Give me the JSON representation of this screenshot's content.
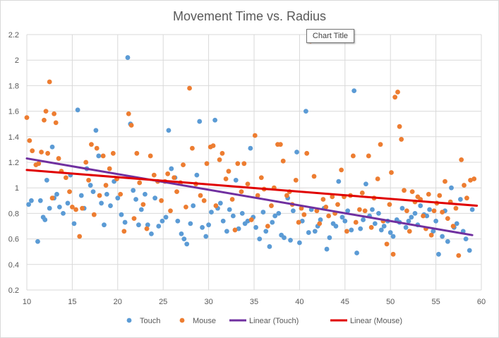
{
  "chart_data": {
    "type": "scatter",
    "title": "Movement Time vs. Radius",
    "xlabel": "",
    "ylabel": "",
    "xlim": [
      10,
      60
    ],
    "ylim": [
      0.2,
      2.2
    ],
    "x_ticks": [
      10,
      15,
      20,
      25,
      30,
      35,
      40,
      45,
      50,
      55,
      60
    ],
    "y_ticks": [
      0.2,
      0.4,
      0.6,
      0.8,
      1,
      1.2,
      1.4,
      1.6,
      1.8,
      2,
      2.2
    ],
    "x_tick_labels": [
      "10",
      "15",
      "20",
      "25",
      "30",
      "35",
      "40",
      "45",
      "50",
      "55",
      "60"
    ],
    "y_tick_labels": [
      "0.2",
      "0.4",
      "0.6",
      "0.8",
      "1",
      "1.2",
      "1.4",
      "1.6",
      "1.8",
      "2",
      "2.2"
    ],
    "grid": true,
    "legend_position": "bottom",
    "tooltip": "Chart Title",
    "series": [
      {
        "name": "Touch",
        "kind": "scatter",
        "color": "#5b9bd5",
        "points": [
          [
            10.2,
            0.87
          ],
          [
            10.5,
            0.9
          ],
          [
            11.2,
            0.58
          ],
          [
            11.5,
            0.9
          ],
          [
            11.8,
            0.77
          ],
          [
            12,
            0.75
          ],
          [
            12.2,
            1.06
          ],
          [
            12.5,
            0.84
          ],
          [
            12.8,
            1.32
          ],
          [
            13,
            0.92
          ],
          [
            13.3,
            0.95
          ],
          [
            13.6,
            0.85
          ],
          [
            14,
            0.8
          ],
          [
            14.5,
            0.88
          ],
          [
            14.8,
            1.1
          ],
          [
            15.2,
            0.72
          ],
          [
            15.6,
            1.61
          ],
          [
            16,
            0.94
          ],
          [
            16.3,
            0.84
          ],
          [
            16.6,
            1.15
          ],
          [
            17,
            1.02
          ],
          [
            17.3,
            0.97
          ],
          [
            17.6,
            1.45
          ],
          [
            17.9,
            1.25
          ],
          [
            18.2,
            0.88
          ],
          [
            18.5,
            0.71
          ],
          [
            18.8,
            0.95
          ],
          [
            19.2,
            0.86
          ],
          [
            19.6,
            1.05
          ],
          [
            20,
            0.92
          ],
          [
            20.4,
            0.79
          ],
          [
            20.8,
            0.73
          ],
          [
            21.1,
            2.02
          ],
          [
            21.4,
            1.5
          ],
          [
            21.7,
            0.98
          ],
          [
            22,
            0.91
          ],
          [
            22.3,
            0.71
          ],
          [
            22.6,
            0.83
          ],
          [
            23,
            0.95
          ],
          [
            23.3,
            0.71
          ],
          [
            23.7,
            0.64
          ],
          [
            24.1,
            0.92
          ],
          [
            24.5,
            0.7
          ],
          [
            24.9,
            0.74
          ],
          [
            25.3,
            0.77
          ],
          [
            25.6,
            1.45
          ],
          [
            25.9,
            1.15
          ],
          [
            26.3,
            1.08
          ],
          [
            26.6,
            0.74
          ],
          [
            27,
            0.64
          ],
          [
            27.3,
            0.6
          ],
          [
            27.6,
            0.56
          ],
          [
            28,
            0.72
          ],
          [
            28.3,
            0.86
          ],
          [
            28.7,
            1.1
          ],
          [
            29,
            1.52
          ],
          [
            29.3,
            0.69
          ],
          [
            29.7,
            0.62
          ],
          [
            30,
            0.71
          ],
          [
            30.3,
            0.81
          ],
          [
            30.7,
            1.53
          ],
          [
            31,
            0.84
          ],
          [
            31.3,
            0.88
          ],
          [
            31.6,
            0.74
          ],
          [
            32,
            0.66
          ],
          [
            32.3,
            0.83
          ],
          [
            32.7,
            0.78
          ],
          [
            33,
            1.06
          ],
          [
            33.3,
            0.68
          ],
          [
            33.7,
            0.8
          ],
          [
            34,
            0.72
          ],
          [
            34.3,
            0.74
          ],
          [
            34.6,
            1.31
          ],
          [
            34.9,
            0.77
          ],
          [
            35.2,
            0.69
          ],
          [
            35.6,
            0.6
          ],
          [
            36,
            0.81
          ],
          [
            36.3,
            0.66
          ],
          [
            36.7,
            0.54
          ],
          [
            37,
            0.73
          ],
          [
            37.3,
            0.78
          ],
          [
            37.7,
            0.8
          ],
          [
            38,
            0.63
          ],
          [
            38.3,
            0.61
          ],
          [
            38.7,
            0.92
          ],
          [
            39,
            0.59
          ],
          [
            39.3,
            0.82
          ],
          [
            39.7,
            1.28
          ],
          [
            40,
            0.57
          ],
          [
            40.3,
            0.74
          ],
          [
            40.7,
            1.6
          ],
          [
            41,
            0.65
          ],
          [
            41.3,
            0.83
          ],
          [
            41.7,
            0.66
          ],
          [
            42,
            0.7
          ],
          [
            42.3,
            0.75
          ],
          [
            42.7,
            0.84
          ],
          [
            43,
            0.52
          ],
          [
            43.3,
            0.61
          ],
          [
            43.7,
            0.72
          ],
          [
            44,
            0.7
          ],
          [
            44.3,
            1.05
          ],
          [
            44.7,
            0.77
          ],
          [
            45,
            0.74
          ],
          [
            45.3,
            0.82
          ],
          [
            45.7,
            0.67
          ],
          [
            46,
            1.76
          ],
          [
            46.3,
            0.49
          ],
          [
            46.7,
            0.68
          ],
          [
            47,
            0.75
          ],
          [
            47.3,
            1.03
          ],
          [
            47.7,
            0.78
          ],
          [
            48,
            0.83
          ],
          [
            48.3,
            0.72
          ],
          [
            48.7,
            0.8
          ],
          [
            49,
            0.67
          ],
          [
            49.3,
            0.7
          ],
          [
            49.7,
            0.74
          ],
          [
            50,
            0.65
          ],
          [
            50.3,
            0.62
          ],
          [
            50.7,
            0.75
          ],
          [
            51,
            0.73
          ],
          [
            51.3,
            0.84
          ],
          [
            51.7,
            0.69
          ],
          [
            52,
            0.74
          ],
          [
            52.3,
            0.77
          ],
          [
            52.7,
            0.8
          ],
          [
            53,
            0.71
          ],
          [
            53.3,
            0.86
          ],
          [
            53.7,
            0.79
          ],
          [
            54,
            0.78
          ],
          [
            54.3,
            0.83
          ],
          [
            54.7,
            0.66
          ],
          [
            55,
            0.74
          ],
          [
            55.3,
            0.48
          ],
          [
            55.7,
            0.62
          ],
          [
            56,
            0.82
          ],
          [
            56.3,
            0.58
          ],
          [
            56.7,
            1.0
          ],
          [
            57,
            0.69
          ],
          [
            57.3,
            0.72
          ],
          [
            57.7,
            0.91
          ],
          [
            58,
            0.66
          ],
          [
            58.3,
            0.6
          ],
          [
            58.7,
            0.51
          ],
          [
            59,
            0.83
          ]
        ]
      },
      {
        "name": "Mouse",
        "kind": "scatter",
        "color": "#ed7d31",
        "points": [
          [
            10,
            1.55
          ],
          [
            10.3,
            1.37
          ],
          [
            10.6,
            1.29
          ],
          [
            11,
            1.18
          ],
          [
            11.3,
            1.19
          ],
          [
            11.6,
            1.28
          ],
          [
            11.9,
            1.53
          ],
          [
            12.1,
            1.6
          ],
          [
            12.3,
            1.27
          ],
          [
            12.5,
            1.83
          ],
          [
            12.8,
            0.92
          ],
          [
            13,
            1.58
          ],
          [
            13.2,
            1.51
          ],
          [
            13.5,
            1.23
          ],
          [
            13.8,
            1.13
          ],
          [
            14.3,
            1.08
          ],
          [
            14.7,
            0.97
          ],
          [
            15,
            0.85
          ],
          [
            15.4,
            0.83
          ],
          [
            15.8,
            0.62
          ],
          [
            16.1,
            0.84
          ],
          [
            16.5,
            1.2
          ],
          [
            16.8,
            1.06
          ],
          [
            17.1,
            1.34
          ],
          [
            17.4,
            0.79
          ],
          [
            17.7,
            1.31
          ],
          [
            18,
            0.94
          ],
          [
            18.4,
            1.25
          ],
          [
            18.7,
            1.02
          ],
          [
            19.1,
            1.15
          ],
          [
            19.5,
            1.27
          ],
          [
            19.9,
            1.07
          ],
          [
            20.3,
            0.95
          ],
          [
            20.7,
            0.66
          ],
          [
            21.2,
            1.58
          ],
          [
            21.5,
            1.49
          ],
          [
            21.8,
            0.76
          ],
          [
            22.1,
            1.27
          ],
          [
            22.4,
            1.04
          ],
          [
            22.8,
            0.87
          ],
          [
            23.2,
            0.68
          ],
          [
            23.6,
            1.25
          ],
          [
            24,
            1.1
          ],
          [
            24.4,
            1.05
          ],
          [
            24.8,
            0.9
          ],
          [
            25.2,
            1.05
          ],
          [
            25.5,
            1.11
          ],
          [
            25.8,
            0.82
          ],
          [
            26.2,
            1.08
          ],
          [
            26.5,
            0.97
          ],
          [
            26.9,
            1.04
          ],
          [
            27.2,
            1.18
          ],
          [
            27.5,
            0.85
          ],
          [
            27.9,
            1.78
          ],
          [
            28.2,
            1.31
          ],
          [
            28.6,
            1.03
          ],
          [
            29.1,
            0.94
          ],
          [
            29.5,
            0.9
          ],
          [
            29.8,
            1.19
          ],
          [
            30.2,
            1.32
          ],
          [
            30.5,
            1.33
          ],
          [
            30.8,
            0.86
          ],
          [
            31.2,
            1.22
          ],
          [
            31.5,
            1.27
          ],
          [
            31.9,
            1.07
          ],
          [
            32.2,
            1.13
          ],
          [
            32.6,
            0.91
          ],
          [
            32.9,
            0.67
          ],
          [
            33.2,
            1.19
          ],
          [
            33.6,
            0.97
          ],
          [
            33.9,
            1.19
          ],
          [
            34.3,
            1.03
          ],
          [
            34.7,
            0.75
          ],
          [
            35.1,
            1.41
          ],
          [
            35.4,
            0.94
          ],
          [
            35.8,
            1.08
          ],
          [
            36.1,
            0.99
          ],
          [
            36.5,
            0.7
          ],
          [
            36.9,
            0.86
          ],
          [
            37.2,
            1.0
          ],
          [
            37.6,
            1.34
          ],
          [
            37.9,
            1.34
          ],
          [
            38.2,
            1.21
          ],
          [
            38.6,
            0.94
          ],
          [
            38.9,
            0.97
          ],
          [
            39.2,
            0.87
          ],
          [
            39.6,
            1.06
          ],
          [
            39.9,
            0.73
          ],
          [
            40.2,
            0.84
          ],
          [
            40.5,
            0.79
          ],
          [
            40.8,
            1.27
          ],
          [
            41.2,
            2.15
          ],
          [
            41.6,
            1.09
          ],
          [
            41.9,
            0.82
          ],
          [
            42.2,
            0.72
          ],
          [
            42.6,
            0.91
          ],
          [
            42.9,
            0.85
          ],
          [
            43.2,
            0.78
          ],
          [
            43.6,
            0.93
          ],
          [
            43.9,
            0.8
          ],
          [
            44.2,
            0.87
          ],
          [
            44.6,
            1.14
          ],
          [
            44.9,
            0.93
          ],
          [
            45.2,
            0.66
          ],
          [
            45.6,
            0.94
          ],
          [
            45.9,
            1.25
          ],
          [
            46.2,
            0.73
          ],
          [
            46.6,
            0.83
          ],
          [
            46.9,
            0.96
          ],
          [
            47.2,
            0.82
          ],
          [
            47.6,
            1.25
          ],
          [
            47.9,
            0.69
          ],
          [
            48.2,
            0.92
          ],
          [
            48.6,
            1.07
          ],
          [
            48.9,
            1.34
          ],
          [
            49.2,
            0.74
          ],
          [
            49.6,
            0.56
          ],
          [
            49.9,
            0.87
          ],
          [
            50.1,
            1.12
          ],
          [
            50.3,
            0.48
          ],
          [
            50.5,
            1.71
          ],
          [
            50.8,
            1.75
          ],
          [
            51,
            1.48
          ],
          [
            51.2,
            1.38
          ],
          [
            51.5,
            0.98
          ],
          [
            51.8,
            0.82
          ],
          [
            52.1,
            0.66
          ],
          [
            52.4,
            0.97
          ],
          [
            52.7,
            0.89
          ],
          [
            53,
            0.93
          ],
          [
            53.3,
            0.91
          ],
          [
            53.6,
            0.78
          ],
          [
            53.9,
            0.68
          ],
          [
            54.2,
            0.95
          ],
          [
            54.5,
            0.63
          ],
          [
            54.8,
            0.82
          ],
          [
            55.1,
            0.88
          ],
          [
            55.4,
            0.94
          ],
          [
            55.7,
            0.81
          ],
          [
            56,
            1.05
          ],
          [
            56.3,
            0.76
          ],
          [
            56.6,
            0.89
          ],
          [
            56.9,
            0.7
          ],
          [
            57.2,
            0.84
          ],
          [
            57.5,
            0.47
          ],
          [
            57.8,
            1.22
          ],
          [
            58.1,
            1.02
          ],
          [
            58.4,
            0.92
          ],
          [
            58.8,
            1.06
          ],
          [
            59.2,
            1.07
          ]
        ]
      },
      {
        "name": "Linear (Touch)",
        "kind": "trendline",
        "color": "#7030a0",
        "x": [
          10,
          59
        ],
        "y": [
          1.23,
          0.63
        ]
      },
      {
        "name": "Linear (Mouse)",
        "kind": "trendline",
        "color": "#e00000",
        "x": [
          10,
          59.5
        ],
        "y": [
          1.14,
          0.86
        ]
      }
    ]
  }
}
